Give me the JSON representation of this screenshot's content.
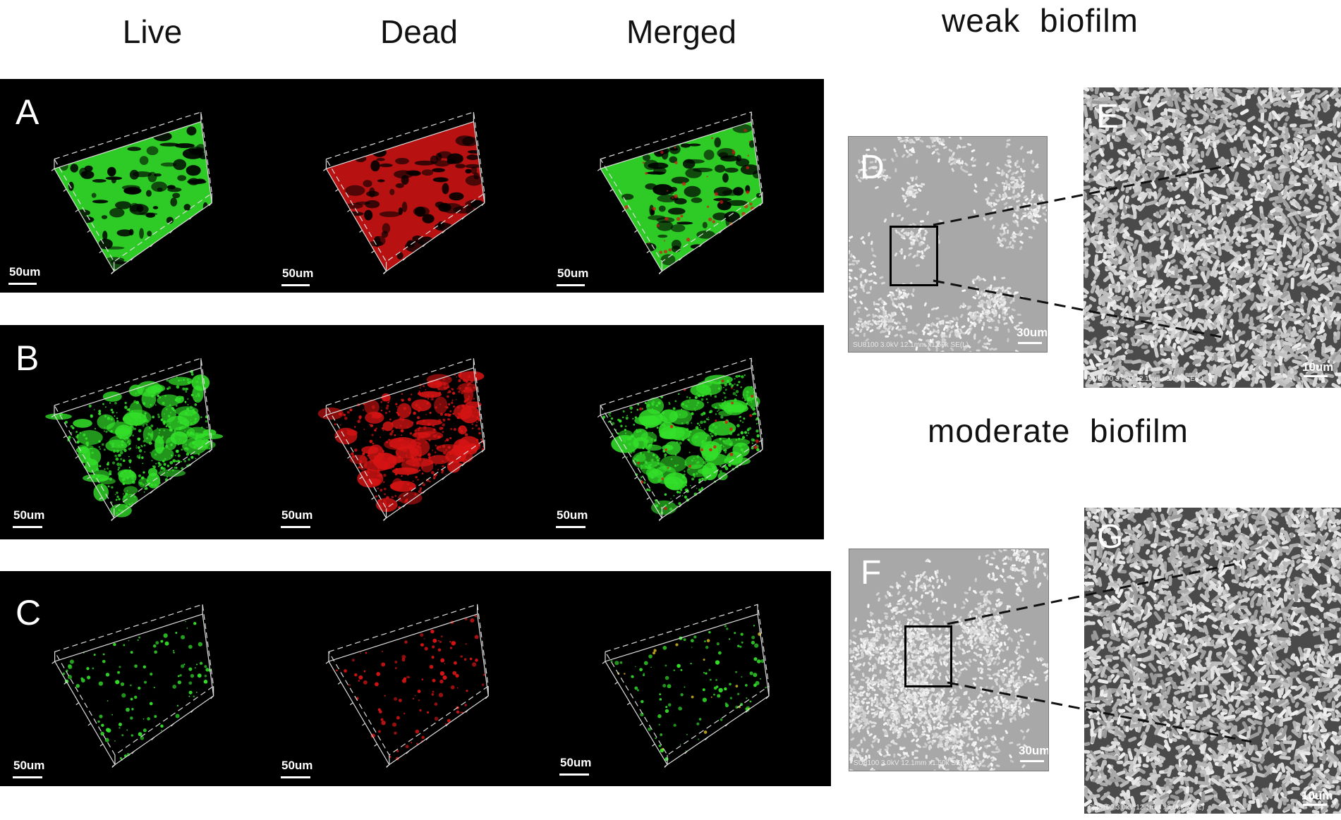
{
  "column_headers": [
    "Live",
    "Dead",
    "Merged"
  ],
  "rows": [
    {
      "label": "A",
      "scales": [
        "50um",
        "50um",
        "50um"
      ]
    },
    {
      "label": "B",
      "scales": [
        "50um",
        "50um",
        "50um"
      ]
    },
    {
      "label": "C",
      "scales": [
        "50um",
        "50um",
        "50um"
      ]
    }
  ],
  "sem": {
    "weak_title": "weak  biofilm",
    "moderate_title": "moderate  biofilm",
    "panels": {
      "D": {
        "label": "D",
        "scale": "30um"
      },
      "E": {
        "label": "E",
        "scale": "10um"
      },
      "F": {
        "label": "F",
        "scale": "30um"
      },
      "G": {
        "label": "G",
        "scale": "10um"
      }
    }
  },
  "colors": {
    "live": "#33e02a",
    "dead": "#d81414",
    "background": "#000000",
    "sem_light": "#b5b5b5",
    "sem_dark": "#555555"
  }
}
